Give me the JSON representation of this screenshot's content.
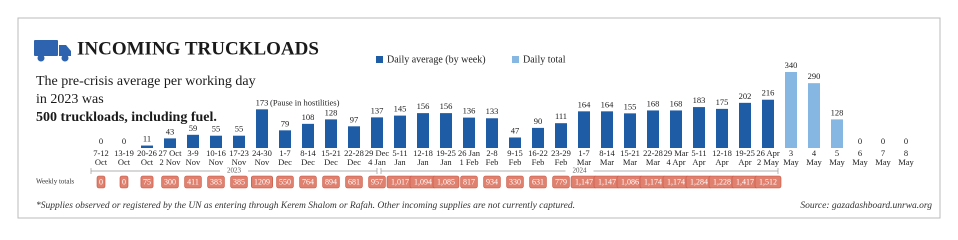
{
  "chart_data": {
    "type": "bar",
    "title": "INCOMING TRUCKLOADS",
    "subtitle": "The pre-crisis average per working day in 2023 was",
    "subtitle_bold": "500 truckloads, including fuel.",
    "annotation": "(Pause in hostilities)",
    "categories": [
      "7-12\nOct",
      "13-19\nOct",
      "20-26\nOct",
      "27 Oct\n2 Nov",
      "3-9\nNov",
      "10-16\nNov",
      "17-23\nNov",
      "24-30\nNov",
      "1-7\nDec",
      "8-14\nDec",
      "15-21\nDec",
      "22-28\nDec",
      "29 Dec\n4 Jan",
      "5-11\nJan",
      "12-18\nJan",
      "19-25\nJan",
      "26 Jan\n1 Feb",
      "2-8\nFeb",
      "9-15\nFeb",
      "16-22\nFeb",
      "23-29\nFeb",
      "1-7\nMar",
      "8-14\nMar",
      "15-21\nMar",
      "22-28\nMar",
      "29 Mar\n4 Apr",
      "5-11\nApr",
      "12-18\nApr",
      "19-25\nApr",
      "26 Apr\n2 May",
      "3\nMay",
      "4\nMay",
      "5\nMay",
      "6\nMay",
      "7\nMay",
      "8\nMay"
    ],
    "series": [
      {
        "name": "Daily average (by week)",
        "color": "#1f5ca6",
        "values": [
          0,
          0,
          11,
          43,
          59,
          55,
          55,
          173,
          79,
          108,
          128,
          97,
          137,
          145,
          156,
          156,
          136,
          133,
          47,
          90,
          111,
          164,
          164,
          155,
          168,
          168,
          183,
          175,
          202,
          216,
          null,
          null,
          null,
          null,
          null,
          null
        ]
      },
      {
        "name": "Daily total",
        "color": "#86b6e2",
        "values": [
          null,
          null,
          null,
          null,
          null,
          null,
          null,
          null,
          null,
          null,
          null,
          null,
          null,
          null,
          null,
          null,
          null,
          null,
          null,
          null,
          null,
          null,
          null,
          null,
          null,
          null,
          null,
          null,
          null,
          null,
          340,
          290,
          128,
          0,
          0,
          0
        ]
      }
    ],
    "year_labels": [
      "2023",
      "2024"
    ],
    "weekly_totals_label": "Weekly totals",
    "weekly_totals": {
      "values": [
        0,
        0,
        75,
        300,
        411,
        383,
        385,
        1209,
        550,
        764,
        894,
        681,
        957,
        1017,
        1094,
        1085,
        817,
        934,
        330,
        631,
        779,
        1147,
        1147,
        1086,
        1174,
        1174,
        1284,
        1228,
        1417,
        1512
      ],
      "value_labels": [
        "0",
        "0",
        "75",
        "300",
        "411",
        "383",
        "385",
        "1209",
        "550",
        "764",
        "894",
        "681",
        "957",
        "1,017",
        "1,094",
        "1,085",
        "817",
        "934",
        "330",
        "631",
        "779",
        "1,147",
        "1,147",
        "1,086",
        "1,174",
        "1,174",
        "1,284",
        "1,228",
        "1,417",
        "1,512"
      ]
    },
    "footnote": "*Supplies observed or registered by the UN as entering through Kerem Shalom or Rafah. Other incoming supplies are not currently captured.",
    "source": "Source: gazadashboard.unrwa.org"
  }
}
